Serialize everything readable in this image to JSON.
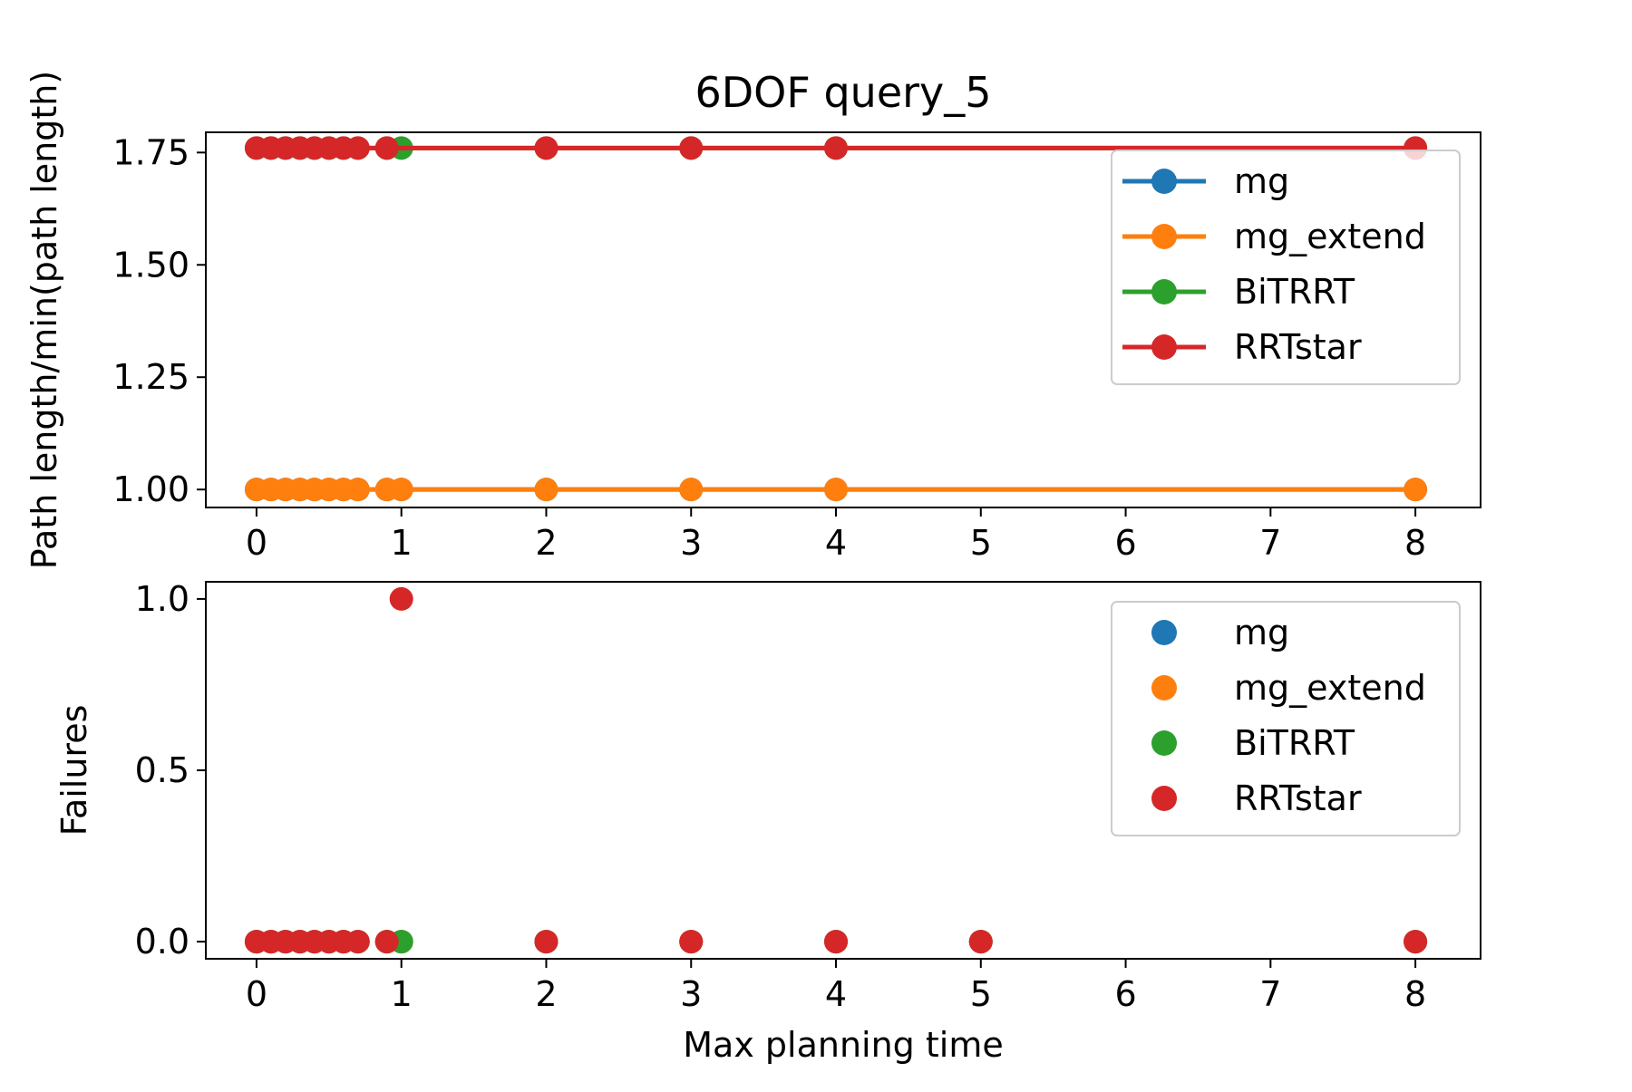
{
  "title": "6DOF query_5",
  "colors": {
    "mg": "#1f77b4",
    "mg_extend": "#ff7f0e",
    "BiTRRT": "#2ca02c",
    "RRTstar": "#d62728"
  },
  "chart_data": [
    {
      "type": "line",
      "panel": "top",
      "title": "6DOF query_5",
      "xlabel": "",
      "ylabel": "Path length/min(path length)",
      "xlim": [
        -0.35,
        8.45
      ],
      "ylim": [
        0.96,
        1.795
      ],
      "xticks": [
        0,
        1,
        2,
        3,
        4,
        5,
        6,
        7,
        8
      ],
      "xtick_labels": [
        "0",
        "1",
        "2",
        "3",
        "4",
        "5",
        "6",
        "7",
        "8"
      ],
      "yticks": [
        1.0,
        1.25,
        1.5,
        1.75
      ],
      "ytick_labels": [
        "1.00",
        "1.25",
        "1.50",
        "1.75"
      ],
      "grid": false,
      "legend_position": "top-right",
      "markers": true,
      "series": [
        {
          "name": "mg",
          "color_key": "mg",
          "x": [
            0,
            0.1,
            0.2,
            0.3,
            0.4,
            0.5,
            0.6,
            0.7,
            0.9,
            1,
            2,
            3,
            4,
            8
          ],
          "y": [
            1.0,
            1.0,
            1.0,
            1.0,
            1.0,
            1.0,
            1.0,
            1.0,
            1.0,
            1.0,
            1.0,
            1.0,
            1.0,
            1.0
          ]
        },
        {
          "name": "mg_extend",
          "color_key": "mg_extend",
          "x": [
            0,
            0.1,
            0.2,
            0.3,
            0.4,
            0.5,
            0.6,
            0.7,
            0.9,
            1,
            2,
            3,
            4,
            8
          ],
          "y": [
            1.0,
            1.0,
            1.0,
            1.0,
            1.0,
            1.0,
            1.0,
            1.0,
            1.0,
            1.0,
            1.0,
            1.0,
            1.0,
            1.0
          ]
        },
        {
          "name": "BiTRRT",
          "color_key": "BiTRRT",
          "x": [
            0,
            0.1,
            0.2,
            0.3,
            0.4,
            0.5,
            0.6,
            0.7,
            0.9,
            1,
            2,
            3,
            4,
            8
          ],
          "y": [
            1.76,
            1.76,
            1.76,
            1.76,
            1.76,
            1.76,
            1.76,
            1.76,
            1.76,
            1.76,
            1.76,
            1.76,
            1.76,
            1.76
          ]
        },
        {
          "name": "RRTstar",
          "color_key": "RRTstar",
          "x": [
            0,
            0.1,
            0.2,
            0.3,
            0.4,
            0.5,
            0.6,
            0.7,
            0.9,
            2,
            3,
            4,
            8
          ],
          "y": [
            1.76,
            1.76,
            1.76,
            1.76,
            1.76,
            1.76,
            1.76,
            1.76,
            1.76,
            1.76,
            1.76,
            1.76,
            1.76
          ]
        }
      ]
    },
    {
      "type": "scatter",
      "panel": "bottom",
      "xlabel": "Max planning time",
      "ylabel": "Failures",
      "xlim": [
        -0.35,
        8.45
      ],
      "ylim": [
        -0.05,
        1.05
      ],
      "xticks": [
        0,
        1,
        2,
        3,
        4,
        5,
        6,
        7,
        8
      ],
      "xtick_labels": [
        "0",
        "1",
        "2",
        "3",
        "4",
        "5",
        "6",
        "7",
        "8"
      ],
      "yticks": [
        0.0,
        0.5,
        1.0
      ],
      "ytick_labels": [
        "0.0",
        "0.5",
        "1.0"
      ],
      "grid": false,
      "legend_position": "top-right",
      "markers": true,
      "series": [
        {
          "name": "mg",
          "color_key": "mg",
          "x": [
            0,
            0.1,
            0.2,
            0.3,
            0.4,
            0.5,
            0.6,
            0.7,
            0.9,
            1,
            2,
            3,
            4,
            5,
            8
          ],
          "y": [
            0,
            0,
            0,
            0,
            0,
            0,
            0,
            0,
            0,
            0,
            0,
            0,
            0,
            0,
            0
          ]
        },
        {
          "name": "mg_extend",
          "color_key": "mg_extend",
          "x": [
            0,
            0.1,
            0.2,
            0.3,
            0.4,
            0.5,
            0.6,
            0.7,
            0.9,
            1,
            2,
            3,
            4,
            5,
            8
          ],
          "y": [
            0,
            0,
            0,
            0,
            0,
            0,
            0,
            0,
            0,
            0,
            0,
            0,
            0,
            0,
            0
          ]
        },
        {
          "name": "BiTRRT",
          "color_key": "BiTRRT",
          "x": [
            0,
            0.1,
            0.2,
            0.3,
            0.4,
            0.5,
            0.6,
            0.7,
            0.9,
            1,
            2,
            3,
            4,
            5,
            8
          ],
          "y": [
            0,
            0,
            0,
            0,
            0,
            0,
            0,
            0,
            0,
            0,
            0,
            0,
            0,
            0,
            0
          ]
        },
        {
          "name": "RRTstar",
          "color_key": "RRTstar",
          "x": [
            0,
            0.1,
            0.2,
            0.3,
            0.4,
            0.5,
            0.6,
            0.7,
            0.9,
            1,
            2,
            3,
            4,
            5,
            8
          ],
          "y": [
            0,
            0,
            0,
            0,
            0,
            0,
            0,
            0,
            0,
            1,
            0,
            0,
            0,
            0,
            0
          ]
        }
      ]
    }
  ]
}
